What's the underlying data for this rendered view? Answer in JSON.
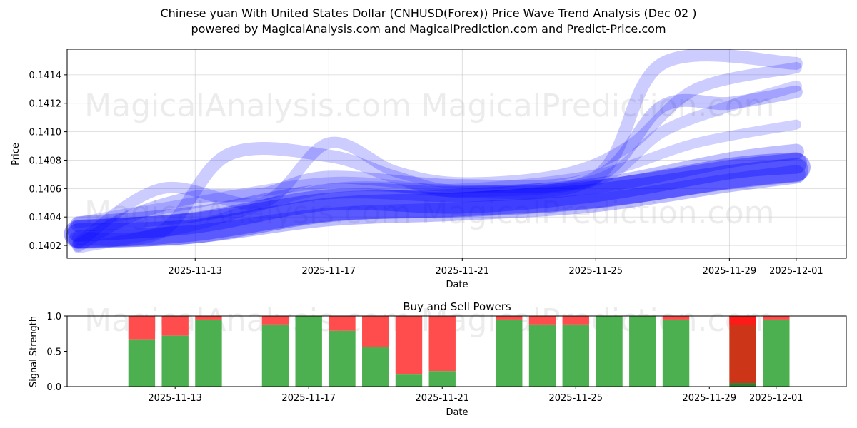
{
  "title_line1": "Chinese yuan With United States Dollar (CNHUSD(Forex)) Price Wave Trend Analysis (Dec 02 )",
  "title_line2": "powered by MagicalAnalysis.com and MagicalPrediction.com and Predict-Price.com",
  "watermarks": [
    "MagicalAnalysis.com",
    "MagicalPrediction.com"
  ],
  "colors": {
    "wave": "#0000ff",
    "buy": "#4caf50",
    "sell": "#ff4d4d",
    "sell_dark": "#cc3517",
    "buy_dark": "#2e7d32",
    "watermark": "#c8c8c8"
  },
  "chart_data": [
    {
      "type": "line",
      "name": "price-wave-trend",
      "title": "",
      "xlabel": "Date",
      "ylabel": "Price",
      "ylim": [
        0.14011,
        0.14158
      ],
      "xlim": [
        "2025-11-09T04:00",
        "2025-12-02T12:00"
      ],
      "grid": true,
      "x_ticks": [
        "2025-11-13",
        "2025-11-17",
        "2025-11-21",
        "2025-11-25",
        "2025-11-29",
        "2025-12-01"
      ],
      "y_ticks": [
        "0.1402",
        "0.1404",
        "0.1406",
        "0.1408",
        "0.1410",
        "0.1412",
        "0.1414"
      ],
      "series": [
        {
          "name": "wave-1",
          "width": 34,
          "opacity": 0.3,
          "x": [
            "2025-11-09T12:00",
            "2025-11-13",
            "2025-11-17",
            "2025-11-21",
            "2025-11-25",
            "2025-11-29",
            "2025-12-01"
          ],
          "values": [
            0.14027,
            0.1403,
            0.14045,
            0.14049,
            0.14055,
            0.14068,
            0.14073
          ]
        },
        {
          "name": "wave-2",
          "width": 30,
          "opacity": 0.3,
          "x": [
            "2025-11-09T12:00",
            "2025-11-13",
            "2025-11-17",
            "2025-11-21",
            "2025-11-25",
            "2025-11-29",
            "2025-12-01"
          ],
          "values": [
            0.1403,
            0.14036,
            0.14052,
            0.1405,
            0.14058,
            0.14074,
            0.14078
          ]
        },
        {
          "name": "wave-3",
          "width": 26,
          "opacity": 0.25,
          "x": [
            "2025-11-09T12:00",
            "2025-11-13",
            "2025-11-17",
            "2025-11-21",
            "2025-11-25",
            "2025-11-29",
            "2025-12-01"
          ],
          "values": [
            0.14024,
            0.14028,
            0.1404,
            0.14044,
            0.1405,
            0.14064,
            0.1407
          ]
        },
        {
          "name": "wave-4",
          "width": 22,
          "opacity": 0.25,
          "x": [
            "2025-11-09T12:00",
            "2025-11-13",
            "2025-11-17",
            "2025-11-21",
            "2025-11-25",
            "2025-11-29",
            "2025-12-01"
          ],
          "values": [
            0.14035,
            0.14042,
            0.14058,
            0.14056,
            0.14062,
            0.1408,
            0.14086
          ]
        },
        {
          "name": "wave-5",
          "width": 18,
          "opacity": 0.22,
          "x": [
            "2025-11-09T12:00",
            "2025-11-11",
            "2025-11-13",
            "2025-11-15",
            "2025-11-17",
            "2025-11-21",
            "2025-11-25",
            "2025-11-27",
            "2025-11-29",
            "2025-12-01"
          ],
          "values": [
            0.1402,
            0.1404,
            0.14054,
            0.14056,
            0.14068,
            0.14062,
            0.14068,
            0.14118,
            0.1412,
            0.14128
          ]
        },
        {
          "name": "wave-6",
          "width": 18,
          "opacity": 0.2,
          "x": [
            "2025-11-09T12:00",
            "2025-11-12",
            "2025-11-14",
            "2025-11-17",
            "2025-11-19",
            "2025-11-21",
            "2025-11-25",
            "2025-11-27",
            "2025-12-01"
          ],
          "values": [
            0.14025,
            0.1403,
            0.14084,
            0.14083,
            0.14068,
            0.14058,
            0.14068,
            0.14148,
            0.14148
          ]
        },
        {
          "name": "wave-7",
          "width": 16,
          "opacity": 0.2,
          "x": [
            "2025-11-09T12:00",
            "2025-11-12",
            "2025-11-15",
            "2025-11-17",
            "2025-11-19",
            "2025-11-21",
            "2025-11-24",
            "2025-11-26",
            "2025-11-28",
            "2025-12-01"
          ],
          "values": [
            0.14022,
            0.1406,
            0.1405,
            0.14092,
            0.14072,
            0.14064,
            0.1407,
            0.1409,
            0.1413,
            0.14145
          ]
        },
        {
          "name": "wave-8",
          "width": 16,
          "opacity": 0.18,
          "x": [
            "2025-11-09T12:00",
            "2025-11-12",
            "2025-11-17",
            "2025-11-21",
            "2025-11-25",
            "2025-11-27",
            "2025-11-29",
            "2025-12-01"
          ],
          "values": [
            0.14036,
            0.14046,
            0.14064,
            0.14058,
            0.14066,
            0.141,
            0.14118,
            0.14132
          ]
        },
        {
          "name": "wave-9",
          "width": 14,
          "opacity": 0.18,
          "x": [
            "2025-11-09T12:00",
            "2025-11-13",
            "2025-11-17",
            "2025-11-21",
            "2025-11-25",
            "2025-11-28",
            "2025-12-01"
          ],
          "values": [
            0.14018,
            0.14034,
            0.1406,
            0.1406,
            0.1407,
            0.14092,
            0.14105
          ]
        },
        {
          "name": "wave-10",
          "width": 40,
          "opacity": 0.32,
          "x": [
            "2025-11-09T12:00",
            "2025-11-13",
            "2025-11-17",
            "2025-11-21",
            "2025-11-25",
            "2025-11-29",
            "2025-12-01"
          ],
          "values": [
            0.14028,
            0.14033,
            0.14047,
            0.1405,
            0.14056,
            0.1407,
            0.14075
          ]
        }
      ]
    },
    {
      "type": "bar",
      "name": "buy-sell-powers",
      "title": "Buy and Sell Powers",
      "xlabel": "Date",
      "ylabel": "Signal Strength",
      "ylim": [
        0,
        1
      ],
      "y_ticks": [
        "0.0",
        "0.5",
        "1.0"
      ],
      "x_ticks": [
        "2025-11-13",
        "2025-11-17",
        "2025-11-21",
        "2025-11-25",
        "2025-11-29",
        "2025-12-01"
      ],
      "categories": [
        "2025-11-12",
        "2025-11-13",
        "2025-11-14",
        "2025-11-16",
        "2025-11-17",
        "2025-11-18",
        "2025-11-19",
        "2025-11-20",
        "2025-11-21",
        "2025-11-23",
        "2025-11-24",
        "2025-11-25",
        "2025-11-26",
        "2025-11-27",
        "2025-11-28",
        "2025-11-30",
        "2025-12-01"
      ],
      "series": [
        {
          "name": "buy",
          "values": [
            0.67,
            0.72,
            0.95,
            0.88,
            1.0,
            0.79,
            0.56,
            0.17,
            0.22,
            0.95,
            0.88,
            0.88,
            1.0,
            1.0,
            0.95,
            0.05,
            0.95
          ]
        },
        {
          "name": "sell",
          "values": [
            0.33,
            0.28,
            0.05,
            0.12,
            0.0,
            0.21,
            0.44,
            0.83,
            0.78,
            0.05,
            0.12,
            0.12,
            0.0,
            0.0,
            0.05,
            0.95,
            0.05
          ]
        }
      ]
    }
  ]
}
